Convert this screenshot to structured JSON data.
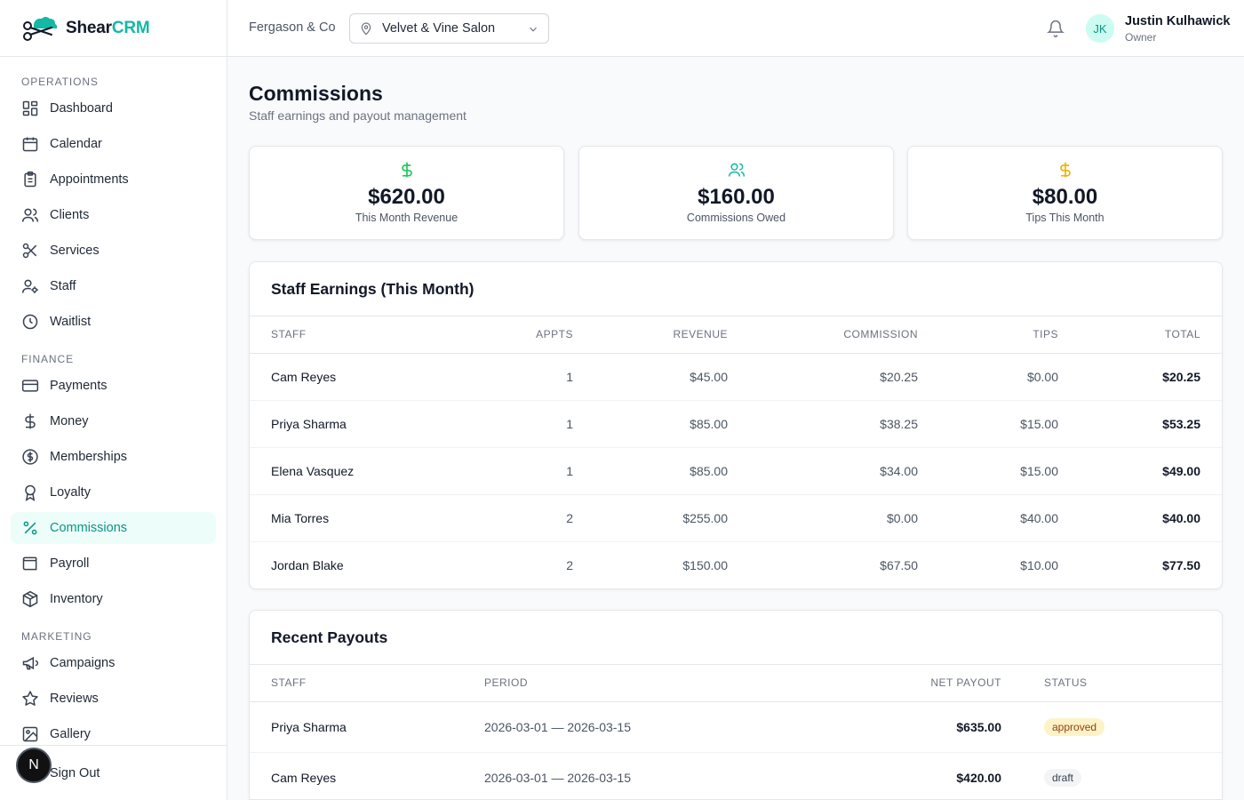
{
  "brand": {
    "name_a": "Shear",
    "name_b": "CRM",
    "accent": "#14b8a6"
  },
  "header": {
    "org": "Fergason & Co",
    "location": "Velvet & Vine Salon",
    "user_initials": "JK",
    "user_name": "Justin Kulhawick",
    "user_role": "Owner"
  },
  "sidebar": {
    "sections": [
      {
        "title": "OPERATIONS",
        "items": [
          {
            "label": "Dashboard",
            "icon": "dashboard-icon"
          },
          {
            "label": "Calendar",
            "icon": "calendar-icon"
          },
          {
            "label": "Appointments",
            "icon": "clipboard-icon"
          },
          {
            "label": "Clients",
            "icon": "users-icon"
          },
          {
            "label": "Services",
            "icon": "scissors-icon"
          },
          {
            "label": "Staff",
            "icon": "user-cog-icon"
          },
          {
            "label": "Waitlist",
            "icon": "clock-icon"
          }
        ]
      },
      {
        "title": "FINANCE",
        "items": [
          {
            "label": "Payments",
            "icon": "credit-card-icon"
          },
          {
            "label": "Money",
            "icon": "dollar-icon"
          },
          {
            "label": "Memberships",
            "icon": "dollar-circle-icon"
          },
          {
            "label": "Loyalty",
            "icon": "award-icon"
          },
          {
            "label": "Commissions",
            "icon": "percent-icon",
            "active": true
          },
          {
            "label": "Payroll",
            "icon": "wallet-icon"
          },
          {
            "label": "Inventory",
            "icon": "package-icon"
          }
        ]
      },
      {
        "title": "MARKETING",
        "items": [
          {
            "label": "Campaigns",
            "icon": "megaphone-icon"
          },
          {
            "label": "Reviews",
            "icon": "star-icon"
          },
          {
            "label": "Gallery",
            "icon": "image-icon"
          }
        ]
      }
    ],
    "sign_out": "Sign Out",
    "badge": "N"
  },
  "page": {
    "title": "Commissions",
    "subtitle": "Staff earnings and payout management"
  },
  "stats": [
    {
      "value": "$620.00",
      "label": "This Month Revenue",
      "icon": "dollar-icon",
      "color": "#22c55e"
    },
    {
      "value": "$160.00",
      "label": "Commissions Owed",
      "icon": "users-icon",
      "color": "#14b8a6"
    },
    {
      "value": "$80.00",
      "label": "Tips This Month",
      "icon": "dollar-icon",
      "color": "#eab308"
    }
  ],
  "earnings": {
    "title": "Staff Earnings (This Month)",
    "columns": [
      "Staff",
      "Appts",
      "Revenue",
      "Commission",
      "Tips",
      "Total"
    ],
    "rows": [
      {
        "staff": "Cam Reyes",
        "appts": "1",
        "revenue": "$45.00",
        "commission": "$20.25",
        "tips": "$0.00",
        "total": "$20.25"
      },
      {
        "staff": "Priya Sharma",
        "appts": "1",
        "revenue": "$85.00",
        "commission": "$38.25",
        "tips": "$15.00",
        "total": "$53.25"
      },
      {
        "staff": "Elena Vasquez",
        "appts": "1",
        "revenue": "$85.00",
        "commission": "$34.00",
        "tips": "$15.00",
        "total": "$49.00"
      },
      {
        "staff": "Mia Torres",
        "appts": "2",
        "revenue": "$255.00",
        "commission": "$0.00",
        "tips": "$40.00",
        "total": "$40.00"
      },
      {
        "staff": "Jordan Blake",
        "appts": "2",
        "revenue": "$150.00",
        "commission": "$67.50",
        "tips": "$10.00",
        "total": "$77.50"
      }
    ]
  },
  "payouts": {
    "title": "Recent Payouts",
    "columns": [
      "Staff",
      "Period",
      "Net Payout",
      "Status"
    ],
    "rows": [
      {
        "staff": "Priya Sharma",
        "period": "2026-03-01 — 2026-03-15",
        "net": "$635.00",
        "status": "approved"
      },
      {
        "staff": "Cam Reyes",
        "period": "2026-03-01 — 2026-03-15",
        "net": "$420.00",
        "status": "draft"
      }
    ]
  }
}
